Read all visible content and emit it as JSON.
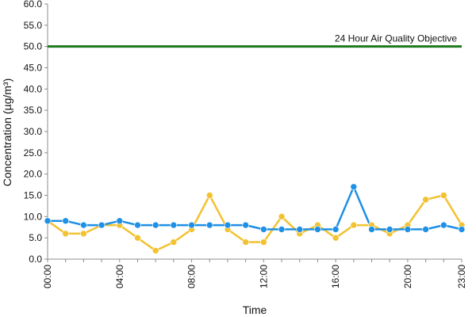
{
  "chart_data": {
    "type": "line",
    "title": "",
    "xlabel": "Time",
    "ylabel": "Concentration (µg/m³)",
    "ylim": [
      0,
      60
    ],
    "yticks": [
      "0.0",
      "5.0",
      "10.0",
      "15.0",
      "20.0",
      "25.0",
      "30.0",
      "35.0",
      "40.0",
      "45.0",
      "50.0",
      "55.0",
      "60.0"
    ],
    "xticks": [
      "00:00",
      "04:00",
      "08:00",
      "12:00",
      "16:00",
      "20:00",
      "23:00"
    ],
    "x": [
      "00:00",
      "01:00",
      "02:00",
      "03:00",
      "04:00",
      "05:00",
      "06:00",
      "07:00",
      "08:00",
      "09:00",
      "10:00",
      "11:00",
      "12:00",
      "13:00",
      "14:00",
      "15:00",
      "16:00",
      "17:00",
      "18:00",
      "19:00",
      "20:00",
      "21:00",
      "22:00",
      "23:00"
    ],
    "grid": false,
    "objective": {
      "label": "24 Hour Air Quality Objective",
      "value": 50,
      "color": "#1e7a1e"
    },
    "series": [
      {
        "color": "#f2c230",
        "values": [
          9,
          6,
          6,
          8,
          8,
          5,
          2,
          4,
          7,
          15,
          7,
          4,
          4,
          10,
          6,
          8,
          5,
          8,
          8,
          6,
          8,
          14,
          15,
          8
        ]
      },
      {
        "color": "#1e90e6",
        "values": [
          9,
          9,
          8,
          8,
          9,
          8,
          8,
          8,
          8,
          8,
          8,
          8,
          7,
          7,
          7,
          7,
          7,
          17,
          7,
          7,
          7,
          7,
          8,
          7
        ]
      }
    ]
  }
}
